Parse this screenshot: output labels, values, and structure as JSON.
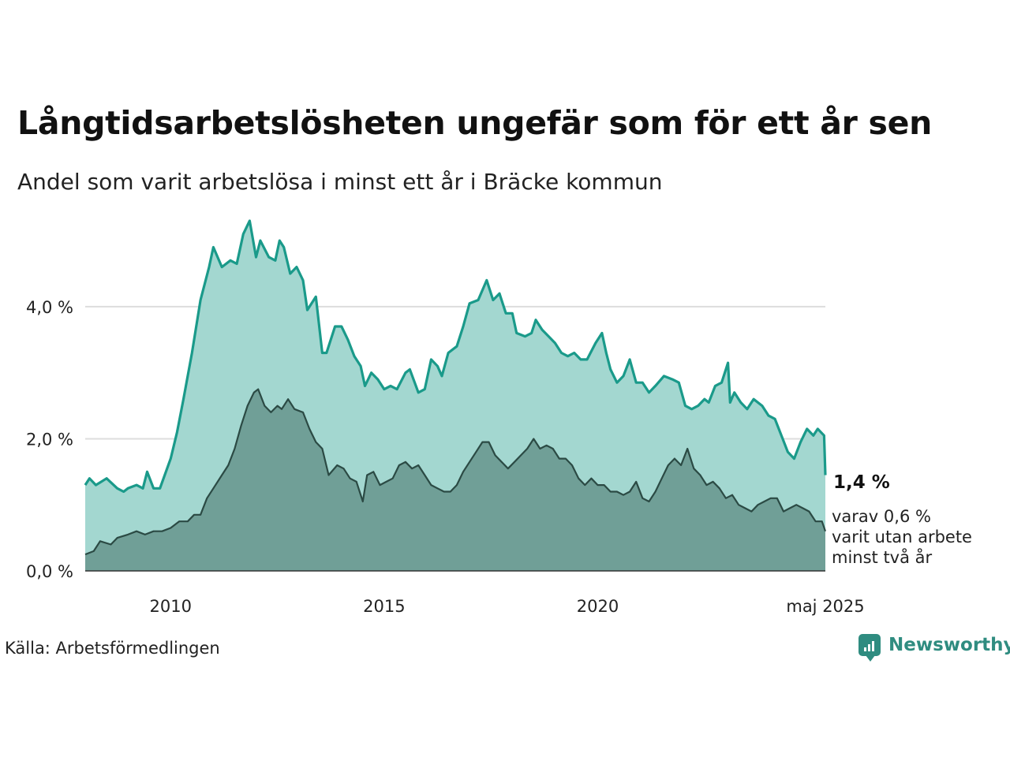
{
  "title": "Långtidsarbetslösheten ungefär som för ett år sen",
  "subtitle": "Andel som varit arbetslösa i minst ett år i Bräcke kommun",
  "source": "Källa: Arbetsförmedlingen",
  "brand": "Newsworthy",
  "colors": {
    "line_total": "#1a9a8a",
    "fill_total": "#a3d7d0",
    "line_long": "#2b4a44",
    "fill_long": "#709f97",
    "grid": "#dddddd"
  },
  "chart_data": {
    "type": "area",
    "y_ticks": [
      "0,0 %",
      "2,0 %",
      "4,0 %"
    ],
    "ylim": [
      0,
      5.3
    ],
    "x_ticks": [
      {
        "x": 2010,
        "label": "2010"
      },
      {
        "x": 2015,
        "label": "2015"
      },
      {
        "x": 2020,
        "label": "2020"
      },
      {
        "x": 2025.33,
        "label": "maj 2025"
      }
    ],
    "xlim": [
      2008.0,
      2025.33
    ],
    "annotation_value": "1,4 %",
    "annotation_sub": [
      "varav 0,6 %",
      "varit utan arbete",
      "minst två år"
    ],
    "series": [
      {
        "name": "total",
        "points": [
          [
            2008.0,
            1.3
          ],
          [
            2008.1,
            1.4
          ],
          [
            2008.25,
            1.3
          ],
          [
            2008.5,
            1.4
          ],
          [
            2008.75,
            1.25
          ],
          [
            2008.9,
            1.2
          ],
          [
            2009.0,
            1.25
          ],
          [
            2009.2,
            1.3
          ],
          [
            2009.35,
            1.25
          ],
          [
            2009.45,
            1.5
          ],
          [
            2009.6,
            1.25
          ],
          [
            2009.75,
            1.25
          ],
          [
            2010.0,
            1.7
          ],
          [
            2010.15,
            2.1
          ],
          [
            2010.3,
            2.6
          ],
          [
            2010.5,
            3.3
          ],
          [
            2010.7,
            4.1
          ],
          [
            2010.9,
            4.6
          ],
          [
            2011.0,
            4.9
          ],
          [
            2011.2,
            4.6
          ],
          [
            2011.4,
            4.7
          ],
          [
            2011.55,
            4.65
          ],
          [
            2011.7,
            5.1
          ],
          [
            2011.85,
            5.3
          ],
          [
            2012.0,
            4.75
          ],
          [
            2012.1,
            5.0
          ],
          [
            2012.3,
            4.75
          ],
          [
            2012.45,
            4.7
          ],
          [
            2012.55,
            5.0
          ],
          [
            2012.65,
            4.9
          ],
          [
            2012.8,
            4.5
          ],
          [
            2012.95,
            4.6
          ],
          [
            2013.1,
            4.4
          ],
          [
            2013.2,
            3.95
          ],
          [
            2013.4,
            4.15
          ],
          [
            2013.55,
            3.3
          ],
          [
            2013.65,
            3.3
          ],
          [
            2013.85,
            3.7
          ],
          [
            2014.0,
            3.7
          ],
          [
            2014.15,
            3.5
          ],
          [
            2014.3,
            3.25
          ],
          [
            2014.45,
            3.1
          ],
          [
            2014.55,
            2.8
          ],
          [
            2014.7,
            3.0
          ],
          [
            2014.85,
            2.9
          ],
          [
            2015.0,
            2.75
          ],
          [
            2015.15,
            2.8
          ],
          [
            2015.3,
            2.75
          ],
          [
            2015.5,
            3.0
          ],
          [
            2015.6,
            3.05
          ],
          [
            2015.8,
            2.7
          ],
          [
            2015.95,
            2.75
          ],
          [
            2016.1,
            3.2
          ],
          [
            2016.25,
            3.1
          ],
          [
            2016.35,
            2.95
          ],
          [
            2016.5,
            3.3
          ],
          [
            2016.7,
            3.4
          ],
          [
            2016.85,
            3.7
          ],
          [
            2017.0,
            4.05
          ],
          [
            2017.2,
            4.1
          ],
          [
            2017.4,
            4.4
          ],
          [
            2017.55,
            4.1
          ],
          [
            2017.7,
            4.2
          ],
          [
            2017.85,
            3.9
          ],
          [
            2018.0,
            3.9
          ],
          [
            2018.1,
            3.6
          ],
          [
            2018.3,
            3.55
          ],
          [
            2018.45,
            3.6
          ],
          [
            2018.55,
            3.8
          ],
          [
            2018.7,
            3.65
          ],
          [
            2018.85,
            3.55
          ],
          [
            2019.0,
            3.45
          ],
          [
            2019.15,
            3.3
          ],
          [
            2019.3,
            3.25
          ],
          [
            2019.45,
            3.3
          ],
          [
            2019.6,
            3.2
          ],
          [
            2019.75,
            3.2
          ],
          [
            2019.95,
            3.45
          ],
          [
            2020.1,
            3.6
          ],
          [
            2020.2,
            3.3
          ],
          [
            2020.3,
            3.05
          ],
          [
            2020.45,
            2.85
          ],
          [
            2020.6,
            2.95
          ],
          [
            2020.75,
            3.2
          ],
          [
            2020.9,
            2.85
          ],
          [
            2021.05,
            2.85
          ],
          [
            2021.2,
            2.7
          ],
          [
            2021.35,
            2.8
          ],
          [
            2021.55,
            2.95
          ],
          [
            2021.75,
            2.9
          ],
          [
            2021.9,
            2.85
          ],
          [
            2022.05,
            2.5
          ],
          [
            2022.2,
            2.45
          ],
          [
            2022.35,
            2.5
          ],
          [
            2022.5,
            2.6
          ],
          [
            2022.6,
            2.55
          ],
          [
            2022.75,
            2.8
          ],
          [
            2022.9,
            2.85
          ],
          [
            2023.05,
            3.15
          ],
          [
            2023.1,
            2.55
          ],
          [
            2023.2,
            2.7
          ],
          [
            2023.35,
            2.55
          ],
          [
            2023.5,
            2.45
          ],
          [
            2023.65,
            2.6
          ],
          [
            2023.85,
            2.5
          ],
          [
            2024.0,
            2.35
          ],
          [
            2024.15,
            2.3
          ],
          [
            2024.3,
            2.05
          ],
          [
            2024.45,
            1.8
          ],
          [
            2024.6,
            1.7
          ],
          [
            2024.75,
            1.95
          ],
          [
            2024.9,
            2.15
          ],
          [
            2025.05,
            2.05
          ],
          [
            2025.15,
            2.15
          ],
          [
            2025.3,
            2.05
          ],
          [
            2025.33,
            1.45
          ]
        ]
      },
      {
        "name": "minst två år",
        "points": [
          [
            2008.0,
            0.25
          ],
          [
            2008.2,
            0.3
          ],
          [
            2008.35,
            0.45
          ],
          [
            2008.6,
            0.4
          ],
          [
            2008.75,
            0.5
          ],
          [
            2009.0,
            0.55
          ],
          [
            2009.2,
            0.6
          ],
          [
            2009.4,
            0.55
          ],
          [
            2009.6,
            0.6
          ],
          [
            2009.8,
            0.6
          ],
          [
            2010.0,
            0.65
          ],
          [
            2010.2,
            0.75
          ],
          [
            2010.4,
            0.75
          ],
          [
            2010.55,
            0.85
          ],
          [
            2010.7,
            0.85
          ],
          [
            2010.85,
            1.1
          ],
          [
            2011.0,
            1.25
          ],
          [
            2011.2,
            1.45
          ],
          [
            2011.35,
            1.6
          ],
          [
            2011.5,
            1.85
          ],
          [
            2011.65,
            2.2
          ],
          [
            2011.8,
            2.5
          ],
          [
            2011.95,
            2.7
          ],
          [
            2012.05,
            2.75
          ],
          [
            2012.2,
            2.5
          ],
          [
            2012.35,
            2.4
          ],
          [
            2012.5,
            2.5
          ],
          [
            2012.6,
            2.45
          ],
          [
            2012.75,
            2.6
          ],
          [
            2012.9,
            2.45
          ],
          [
            2013.1,
            2.4
          ],
          [
            2013.25,
            2.15
          ],
          [
            2013.4,
            1.95
          ],
          [
            2013.55,
            1.85
          ],
          [
            2013.7,
            1.45
          ],
          [
            2013.9,
            1.6
          ],
          [
            2014.05,
            1.55
          ],
          [
            2014.2,
            1.4
          ],
          [
            2014.35,
            1.35
          ],
          [
            2014.5,
            1.05
          ],
          [
            2014.6,
            1.45
          ],
          [
            2014.75,
            1.5
          ],
          [
            2014.9,
            1.3
          ],
          [
            2015.05,
            1.35
          ],
          [
            2015.2,
            1.4
          ],
          [
            2015.35,
            1.6
          ],
          [
            2015.5,
            1.65
          ],
          [
            2015.65,
            1.55
          ],
          [
            2015.8,
            1.6
          ],
          [
            2015.95,
            1.45
          ],
          [
            2016.1,
            1.3
          ],
          [
            2016.25,
            1.25
          ],
          [
            2016.4,
            1.2
          ],
          [
            2016.55,
            1.2
          ],
          [
            2016.7,
            1.3
          ],
          [
            2016.85,
            1.5
          ],
          [
            2017.0,
            1.65
          ],
          [
            2017.15,
            1.8
          ],
          [
            2017.3,
            1.95
          ],
          [
            2017.45,
            1.95
          ],
          [
            2017.6,
            1.75
          ],
          [
            2017.75,
            1.65
          ],
          [
            2017.9,
            1.55
          ],
          [
            2018.05,
            1.65
          ],
          [
            2018.2,
            1.75
          ],
          [
            2018.35,
            1.85
          ],
          [
            2018.5,
            2.0
          ],
          [
            2018.65,
            1.85
          ],
          [
            2018.8,
            1.9
          ],
          [
            2018.95,
            1.85
          ],
          [
            2019.1,
            1.7
          ],
          [
            2019.25,
            1.7
          ],
          [
            2019.4,
            1.6
          ],
          [
            2019.55,
            1.4
          ],
          [
            2019.7,
            1.3
          ],
          [
            2019.85,
            1.4
          ],
          [
            2020.0,
            1.3
          ],
          [
            2020.15,
            1.3
          ],
          [
            2020.3,
            1.2
          ],
          [
            2020.45,
            1.2
          ],
          [
            2020.6,
            1.15
          ],
          [
            2020.75,
            1.2
          ],
          [
            2020.9,
            1.35
          ],
          [
            2021.05,
            1.1
          ],
          [
            2021.2,
            1.05
          ],
          [
            2021.35,
            1.2
          ],
          [
            2021.5,
            1.4
          ],
          [
            2021.65,
            1.6
          ],
          [
            2021.8,
            1.7
          ],
          [
            2021.95,
            1.6
          ],
          [
            2022.1,
            1.85
          ],
          [
            2022.25,
            1.55
          ],
          [
            2022.4,
            1.45
          ],
          [
            2022.55,
            1.3
          ],
          [
            2022.7,
            1.35
          ],
          [
            2022.85,
            1.25
          ],
          [
            2023.0,
            1.1
          ],
          [
            2023.15,
            1.15
          ],
          [
            2023.3,
            1.0
          ],
          [
            2023.45,
            0.95
          ],
          [
            2023.6,
            0.9
          ],
          [
            2023.75,
            1.0
          ],
          [
            2023.9,
            1.05
          ],
          [
            2024.05,
            1.1
          ],
          [
            2024.2,
            1.1
          ],
          [
            2024.35,
            0.9
          ],
          [
            2024.5,
            0.95
          ],
          [
            2024.65,
            1.0
          ],
          [
            2024.8,
            0.95
          ],
          [
            2024.95,
            0.9
          ],
          [
            2025.1,
            0.75
          ],
          [
            2025.25,
            0.75
          ],
          [
            2025.33,
            0.6
          ]
        ]
      }
    ]
  }
}
